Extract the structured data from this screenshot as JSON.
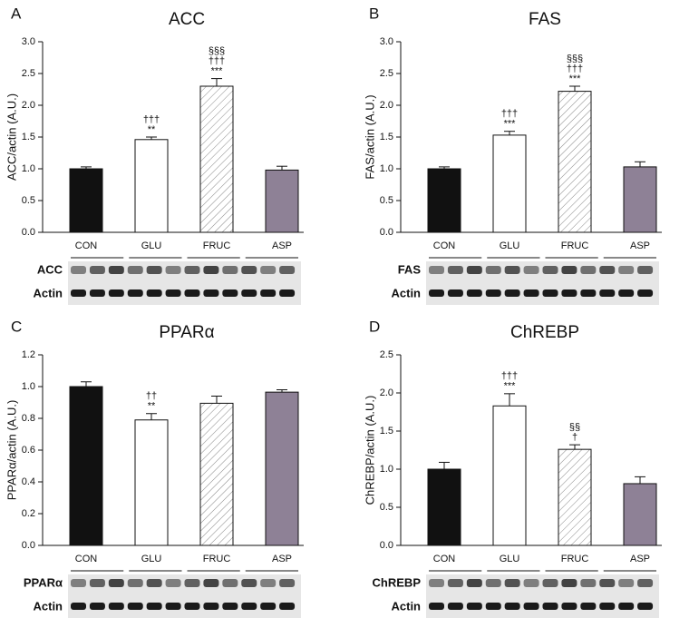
{
  "chart_data": [
    {
      "type": "bar",
      "panel": "A",
      "title": "ACC",
      "y_label": "ACC/actin (A.U.)",
      "categories": [
        "CON",
        "GLU",
        "FRUC",
        "ASP"
      ],
      "values": [
        1.0,
        1.46,
        2.3,
        0.98
      ],
      "errors": [
        0.03,
        0.04,
        0.12,
        0.06
      ],
      "colors": [
        "#111111",
        "#ffffff",
        "#ffffff",
        "#8e8196"
      ],
      "hatched": [
        false,
        false,
        true,
        false
      ],
      "annotations": [
        [],
        [
          "†††",
          "**"
        ],
        [
          "§§§",
          "†††",
          "***"
        ],
        []
      ],
      "ylim": [
        0,
        3
      ],
      "yticks": [
        {
          "value": 0,
          "label": "0.0"
        },
        0.5,
        {
          "value": 1,
          "label": "1.0"
        },
        1.5,
        {
          "value": 2,
          "label": "2.0"
        },
        2.5,
        {
          "value": 3,
          "label": "3.0"
        }
      ],
      "blot_labels": [
        "ACC",
        "Actin"
      ]
    },
    {
      "type": "bar",
      "panel": "B",
      "title": "FAS",
      "y_label": "FAS/actin (A.U.)",
      "categories": [
        "CON",
        "GLU",
        "FRUC",
        "ASP"
      ],
      "values": [
        1.0,
        1.53,
        2.22,
        1.03
      ],
      "errors": [
        0.03,
        0.06,
        0.08,
        0.08
      ],
      "colors": [
        "#111111",
        "#ffffff",
        "#ffffff",
        "#8e8196"
      ],
      "hatched": [
        false,
        false,
        true,
        false
      ],
      "annotations": [
        [],
        [
          "†††",
          "***"
        ],
        [
          "§§§",
          "†††",
          "***"
        ],
        []
      ],
      "ylim": [
        0,
        3
      ],
      "yticks": [
        {
          "value": 0,
          "label": "0.0"
        },
        0.5,
        {
          "value": 1,
          "label": "1.0"
        },
        1.5,
        {
          "value": 2,
          "label": "2.0"
        },
        2.5,
        {
          "value": 3,
          "label": "3.0"
        }
      ],
      "blot_labels": [
        "FAS",
        "Actin"
      ]
    },
    {
      "type": "bar",
      "panel": "C",
      "title": "PPARα",
      "y_label": "PPARα/actin (A.U.)",
      "categories": [
        "CON",
        "GLU",
        "FRUC",
        "ASP"
      ],
      "values": [
        1.0,
        0.79,
        0.895,
        0.965
      ],
      "errors": [
        0.03,
        0.04,
        0.045,
        0.015
      ],
      "colors": [
        "#111111",
        "#ffffff",
        "#ffffff",
        "#8e8196"
      ],
      "hatched": [
        false,
        false,
        true,
        false
      ],
      "annotations": [
        [],
        [
          "††",
          "**"
        ],
        [],
        []
      ],
      "ylim": [
        0,
        1.2
      ],
      "yticks": [
        {
          "value": 0,
          "label": "0.0"
        },
        0.2,
        0.4,
        0.6,
        0.8,
        {
          "value": 1,
          "label": "1.0"
        },
        1.2
      ],
      "blot_labels": [
        "PPARα",
        "Actin"
      ]
    },
    {
      "type": "bar",
      "panel": "D",
      "title": "ChREBP",
      "y_label": "ChREBP/actin (A.U.)",
      "categories": [
        "CON",
        "GLU",
        "FRUC",
        "ASP"
      ],
      "values": [
        1.0,
        1.83,
        1.26,
        0.81
      ],
      "errors": [
        0.09,
        0.16,
        0.06,
        0.09
      ],
      "colors": [
        "#111111",
        "#ffffff",
        "#ffffff",
        "#8e8196"
      ],
      "hatched": [
        false,
        false,
        true,
        false
      ],
      "annotations": [
        [],
        [
          "†††",
          "***"
        ],
        [
          "§§",
          "†"
        ],
        []
      ],
      "ylim": [
        0,
        2.5
      ],
      "yticks": [
        {
          "value": 0,
          "label": "0.0"
        },
        0.5,
        {
          "value": 1,
          "label": "1.0"
        },
        1.5,
        {
          "value": 2,
          "label": "2.0"
        },
        2.5
      ],
      "blot_labels": [
        "ChREBP",
        "Actin"
      ]
    }
  ]
}
